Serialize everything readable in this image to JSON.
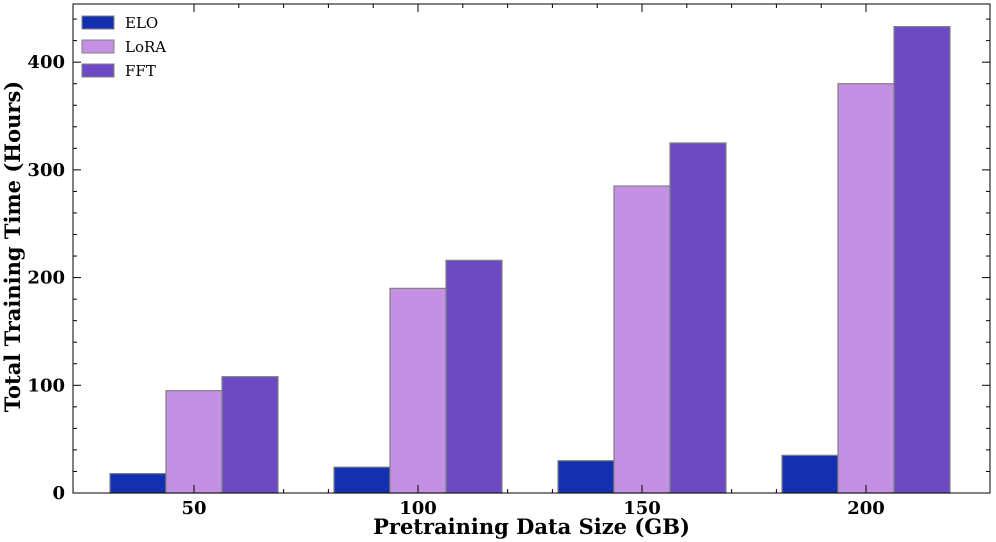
{
  "chart_data": {
    "type": "bar",
    "title": "",
    "xlabel": "Pretraining Data Size (GB)",
    "ylabel": "Total Training Time (Hours)",
    "categories": [
      "50",
      "100",
      "150",
      "200"
    ],
    "series": [
      {
        "name": "ELO",
        "values": [
          18,
          24,
          30,
          35
        ],
        "color": "#1330b0"
      },
      {
        "name": "LoRA",
        "values": [
          95,
          190,
          285,
          380
        ],
        "color": "#c490e4"
      },
      {
        "name": "FFT",
        "values": [
          108,
          216,
          325,
          433
        ],
        "color": "#6b4ac4"
      }
    ],
    "yticks": [
      0,
      100,
      200,
      300,
      400
    ],
    "ylim": [
      0,
      454
    ],
    "grid": false,
    "legend_position": "top-left",
    "bar_edge_color": "#808080"
  }
}
